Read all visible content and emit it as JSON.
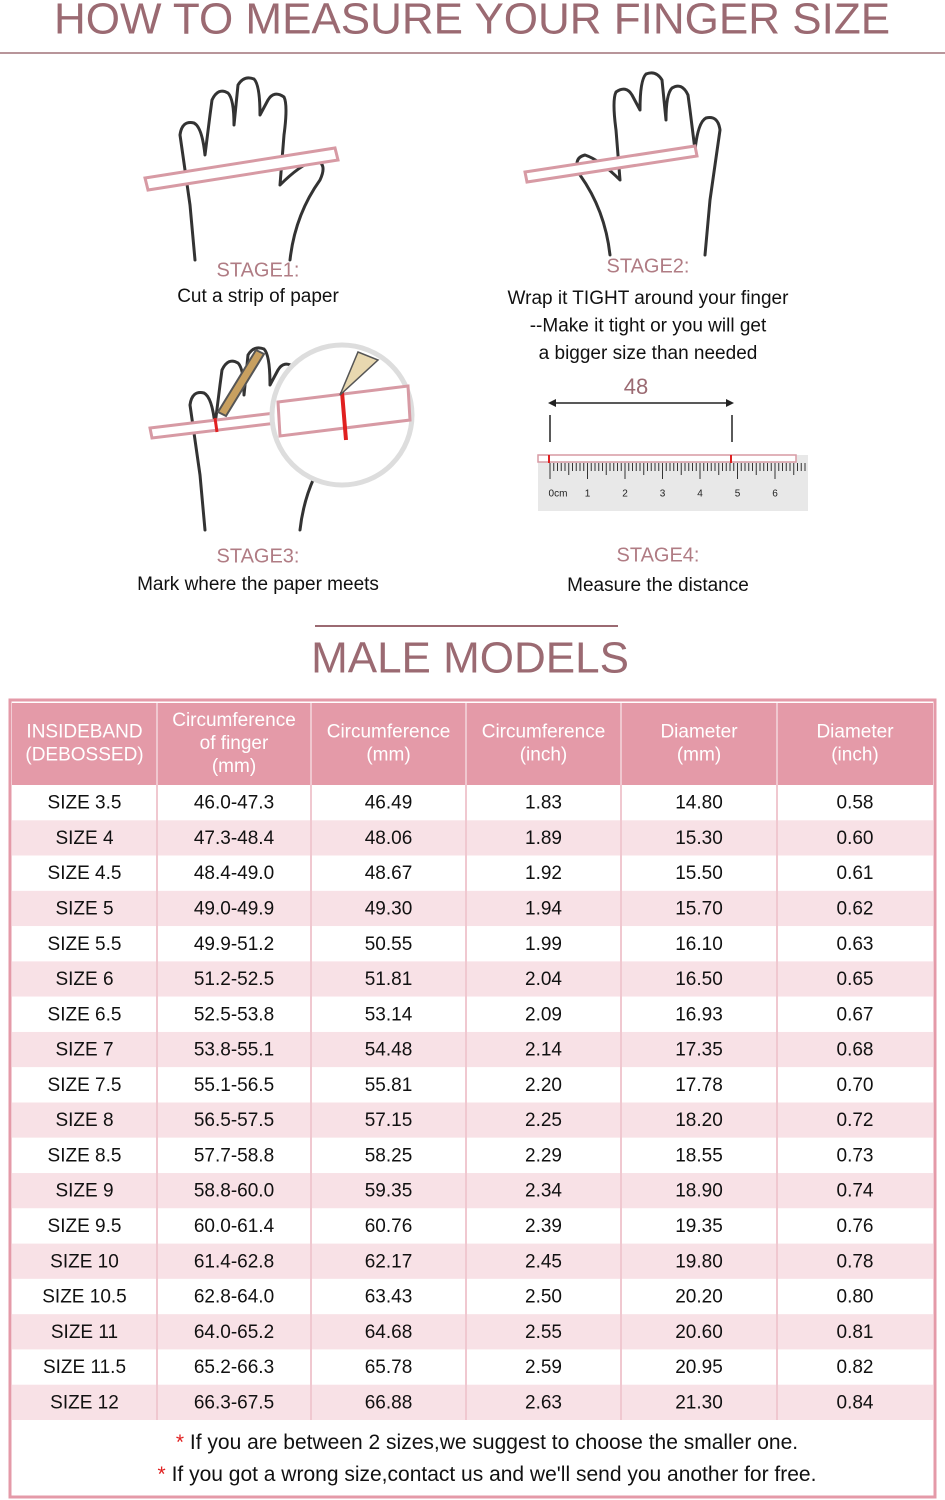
{
  "header": {
    "title": "HOW TO MEASURE YOUR FINGER SIZE"
  },
  "stages": [
    {
      "label": "STAGE1:",
      "lines": [
        "Cut a strip of paper"
      ]
    },
    {
      "label": "STAGE2:",
      "lines": [
        "Wrap it TIGHT around your finger",
        "--Make it tight or you will get",
        "a bigger size than needed"
      ]
    },
    {
      "label": "STAGE3:",
      "lines": [
        "Mark where the paper meets"
      ]
    },
    {
      "label": "STAGE4:",
      "lines": [
        "Measure the distance"
      ]
    }
  ],
  "ruler": {
    "measurement": "48",
    "labels": [
      "0cm",
      "1",
      "2",
      "3",
      "4",
      "5",
      "6"
    ]
  },
  "table": {
    "title": "MALE MODELS",
    "headers": [
      [
        "INSIDEBAND",
        "(DEBOSSED)"
      ],
      [
        "Circumference",
        "of finger",
        "(mm)"
      ],
      [
        "Circumference",
        "(mm)"
      ],
      [
        "Circumference",
        "(inch)"
      ],
      [
        "Diameter",
        "(mm)"
      ],
      [
        "Diameter",
        "(inch)"
      ]
    ],
    "rows": [
      [
        "SIZE 3.5",
        "46.0-47.3",
        "46.49",
        "1.83",
        "14.80",
        "0.58"
      ],
      [
        "SIZE 4",
        "47.3-48.4",
        "48.06",
        "1.89",
        "15.30",
        "0.60"
      ],
      [
        "SIZE 4.5",
        "48.4-49.0",
        "48.67",
        "1.92",
        "15.50",
        "0.61"
      ],
      [
        "SIZE 5",
        "49.0-49.9",
        "49.30",
        "1.94",
        "15.70",
        "0.62"
      ],
      [
        "SIZE 5.5",
        "49.9-51.2",
        "50.55",
        "1.99",
        "16.10",
        "0.63"
      ],
      [
        "SIZE 6",
        "51.2-52.5",
        "51.81",
        "2.04",
        "16.50",
        "0.65"
      ],
      [
        "SIZE 6.5",
        "52.5-53.8",
        "53.14",
        "2.09",
        "16.93",
        "0.67"
      ],
      [
        "SIZE 7",
        "53.8-55.1",
        "54.48",
        "2.14",
        "17.35",
        "0.68"
      ],
      [
        "SIZE 7.5",
        "55.1-56.5",
        "55.81",
        "2.20",
        "17.78",
        "0.70"
      ],
      [
        "SIZE 8",
        "56.5-57.5",
        "57.15",
        "2.25",
        "18.20",
        "0.72"
      ],
      [
        "SIZE 8.5",
        "57.7-58.8",
        "58.25",
        "2.29",
        "18.55",
        "0.73"
      ],
      [
        "SIZE 9",
        "58.8-60.0",
        "59.35",
        "2.34",
        "18.90",
        "0.74"
      ],
      [
        "SIZE 9.5",
        "60.0-61.4",
        "60.76",
        "2.39",
        "19.35",
        "0.76"
      ],
      [
        "SIZE 10",
        "61.4-62.8",
        "62.17",
        "2.45",
        "19.80",
        "0.78"
      ],
      [
        "SIZE 10.5",
        "62.8-64.0",
        "63.43",
        "2.50",
        "20.20",
        "0.80"
      ],
      [
        "SIZE 11",
        "64.0-65.2",
        "64.68",
        "2.55",
        "20.60",
        "0.81"
      ],
      [
        "SIZE 11.5",
        "65.2-66.3",
        "65.78",
        "2.59",
        "20.95",
        "0.82"
      ],
      [
        "SIZE 12",
        "66.3-67.5",
        "66.88",
        "2.63",
        "21.30",
        "0.84"
      ]
    ]
  },
  "notes": [
    {
      "marker": "*",
      "text": "If you are between 2 sizes,we suggest to choose the smaller one."
    },
    {
      "marker": "*",
      "text": "If you got a wrong size,contact us and we'll send you another for free."
    }
  ]
}
